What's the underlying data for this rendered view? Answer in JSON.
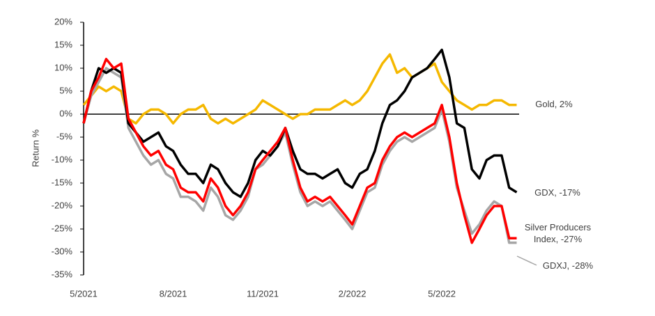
{
  "chart_data": {
    "type": "line",
    "y_label": "Return %",
    "x": [
      2021.333,
      2021.354,
      2021.375,
      2021.396,
      2021.417,
      2021.438,
      2021.458,
      2021.479,
      2021.5,
      2021.521,
      2021.542,
      2021.563,
      2021.583,
      2021.604,
      2021.625,
      2021.646,
      2021.667,
      2021.688,
      2021.708,
      2021.729,
      2021.75,
      2021.771,
      2021.792,
      2021.813,
      2021.833,
      2021.854,
      2021.875,
      2021.896,
      2021.917,
      2021.938,
      2021.958,
      2021.979,
      2022.0,
      2022.021,
      2022.042,
      2022.063,
      2022.083,
      2022.104,
      2022.125,
      2022.146,
      2022.167,
      2022.188,
      2022.208,
      2022.229,
      2022.25,
      2022.271,
      2022.292,
      2022.313,
      2022.333,
      2022.354,
      2022.375,
      2022.396,
      2022.417,
      2022.438,
      2022.458,
      2022.479,
      2022.5,
      2022.521,
      2022.542
    ],
    "series": [
      {
        "name": "Gold, 2%",
        "color": "#f5b800",
        "values": [
          2,
          4,
          6,
          5,
          6,
          5,
          -1,
          -2,
          0,
          1,
          1,
          0,
          -2,
          0,
          1,
          1,
          2,
          -1,
          -2,
          -1,
          -2,
          -1,
          0,
          1,
          3,
          2,
          1,
          0,
          -1,
          0,
          0,
          1,
          1,
          1,
          2,
          3,
          2,
          3,
          5,
          8,
          11,
          13,
          9,
          10,
          8,
          9,
          10,
          11,
          7,
          5,
          3,
          2,
          1,
          2,
          2,
          3,
          3,
          2,
          2
        ]
      },
      {
        "name": "GDXJ, -28%",
        "color": "#a6a6a6",
        "values": [
          -2,
          4,
          7,
          10,
          9,
          8,
          -3,
          -6,
          -9,
          -11,
          -10,
          -13,
          -14,
          -18,
          -18,
          -19,
          -21,
          -16,
          -18,
          -22,
          -23,
          -21,
          -18,
          -12,
          -11,
          -9,
          -7,
          -4,
          -11,
          -17,
          -20,
          -19,
          -20,
          -19,
          -21,
          -23,
          -25,
          -21,
          -17,
          -16,
          -11,
          -8,
          -6,
          -5,
          -6,
          -5,
          -4,
          -3,
          1,
          -6,
          -16,
          -21,
          -26,
          -24,
          -21,
          -19,
          -20,
          -28,
          -28
        ]
      },
      {
        "name": "GDX, -17%",
        "color": "#000000",
        "values": [
          -2,
          5,
          10,
          9,
          10,
          9,
          -2,
          -4,
          -6,
          -5,
          -4,
          -7,
          -8,
          -11,
          -13,
          -13,
          -15,
          -11,
          -12,
          -15,
          -17,
          -18,
          -15,
          -10,
          -8,
          -9,
          -7,
          -3,
          -8,
          -12,
          -13,
          -13,
          -14,
          -13,
          -12,
          -15,
          -16,
          -13,
          -12,
          -8,
          -2,
          2,
          3,
          5,
          8,
          9,
          10,
          12,
          14,
          8,
          -2,
          -3,
          -12,
          -14,
          -10,
          -9,
          -9,
          -16,
          -17
        ]
      },
      {
        "name": "Silver Producers Index, -27%",
        "color": "#ff0000",
        "values": [
          -2,
          5,
          8,
          12,
          10,
          11,
          -1,
          -4,
          -7,
          -9,
          -8,
          -11,
          -12,
          -16,
          -17,
          -17,
          -19,
          -14,
          -16,
          -20,
          -22,
          -20,
          -17,
          -12,
          -10,
          -8,
          -6,
          -3,
          -10,
          -16,
          -19,
          -18,
          -19,
          -18,
          -20,
          -22,
          -24,
          -20,
          -16,
          -15,
          -10,
          -7,
          -5,
          -4,
          -5,
          -4,
          -3,
          -2,
          2,
          -5,
          -15,
          -22,
          -28,
          -25,
          -22,
          -20,
          -20,
          -27,
          -27
        ]
      }
    ],
    "xlim": [
      2021.333,
      2022.578
    ],
    "xticks": [
      {
        "value": 2021.333,
        "label": "5/2021"
      },
      {
        "value": 2021.583,
        "label": "8/2021"
      },
      {
        "value": 2021.833,
        "label": "11/2021"
      },
      {
        "value": 2022.083,
        "label": "2/2022"
      },
      {
        "value": 2022.333,
        "label": "5/2022"
      }
    ],
    "ylim": [
      -35,
      20
    ],
    "yticks": [
      {
        "value": 20,
        "label": "20%"
      },
      {
        "value": 15,
        "label": "15%"
      },
      {
        "value": 10,
        "label": "10%"
      },
      {
        "value": 5,
        "label": "5%"
      },
      {
        "value": 0,
        "label": "0%"
      },
      {
        "value": -5,
        "label": "-5%"
      },
      {
        "value": -10,
        "label": "-10%"
      },
      {
        "value": -15,
        "label": "-15%"
      },
      {
        "value": -20,
        "label": "-20%"
      },
      {
        "value": -25,
        "label": "-25%"
      },
      {
        "value": -30,
        "label": "-30%"
      },
      {
        "value": -35,
        "label": "-35%"
      }
    ]
  }
}
